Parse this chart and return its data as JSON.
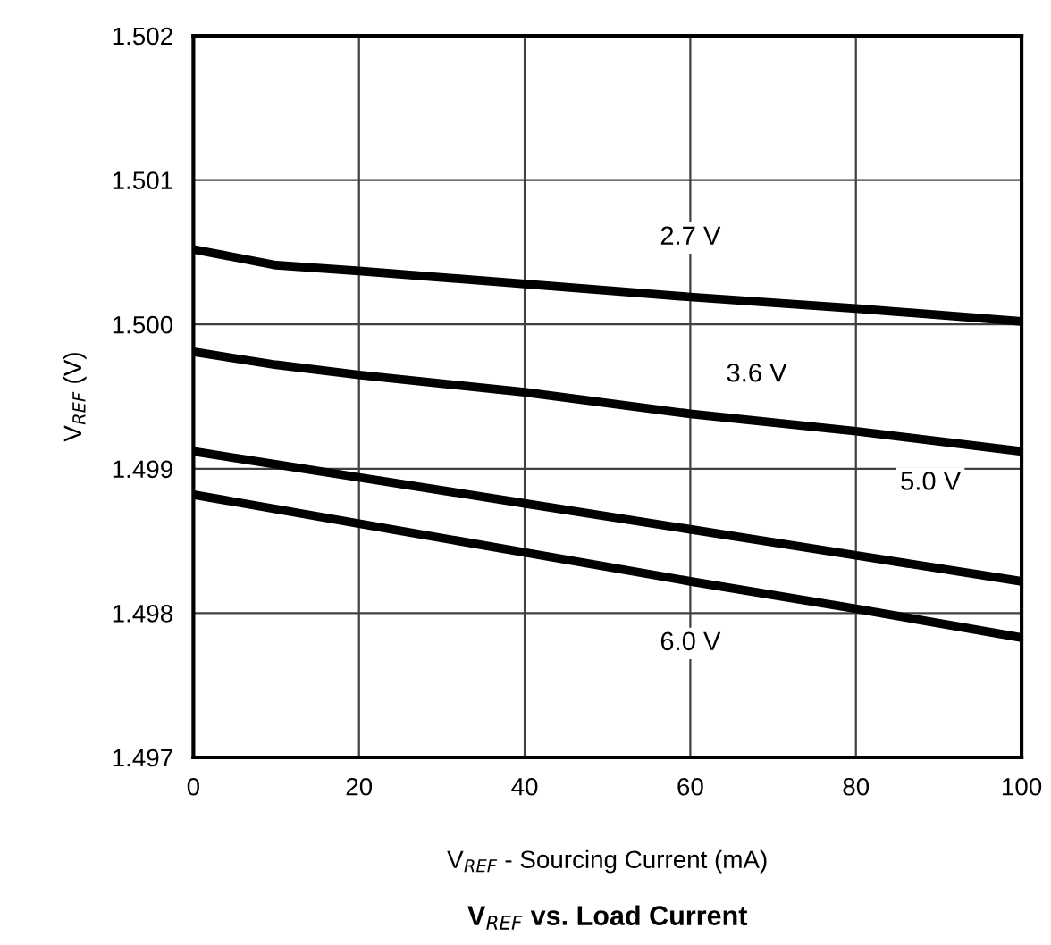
{
  "chart_data": {
    "type": "line",
    "xlabel": "V$_{REF}$ - Sourcing Current (mA)",
    "ylabel": "V$_{REF}$ (V)",
    "title": "V$_{REF}$ vs. Load Current",
    "x": [
      0,
      10,
      20,
      40,
      60,
      80,
      100
    ],
    "series": [
      {
        "color": "#000000",
        "values": [
          1.50052,
          1.50041,
          1.50037,
          1.50028,
          1.50019,
          1.50011,
          1.50002
        ]
      },
      {
        "color": "#000000",
        "values": [
          1.49981,
          1.49972,
          1.49965,
          1.49953,
          1.49938,
          1.49926,
          1.49912
        ]
      },
      {
        "color": "#000000",
        "x": [
          0,
          20,
          40,
          60,
          80,
          100
        ],
        "values": [
          1.49912,
          1.49894,
          1.49876,
          1.49858,
          1.4984,
          1.49822
        ]
      },
      {
        "color": "#000000",
        "x": [
          0,
          20,
          40,
          60,
          80,
          100
        ],
        "values": [
          1.49882,
          1.49862,
          1.49842,
          1.49822,
          1.49803,
          1.49783
        ]
      }
    ],
    "annotations": [
      {
        "text": "2.7 V",
        "x": 60,
        "y": 1.5006
      },
      {
        "text": "3.6 V",
        "x": 68,
        "y": 1.49965
      },
      {
        "text": "5.0 V",
        "x": 89,
        "y": 1.4989
      },
      {
        "text": "6.0 V",
        "x": 60,
        "y": 1.49779
      }
    ],
    "xlim": [
      0,
      100
    ],
    "xticks": [
      0,
      20,
      40,
      60,
      80,
      100
    ],
    "ylim": [
      1.497,
      1.502
    ],
    "yticks": [
      1.497,
      {
        "value": 1.498,
        "label": "1.498"
      },
      {
        "value": 1.499,
        "label": "1.499"
      },
      {
        "value": 1.5,
        "label": "1.500"
      },
      {
        "value": 1.501,
        "label": "1.501"
      },
      1.502
    ],
    "grid": true,
    "line_style": "solid",
    "marker": "none"
  }
}
